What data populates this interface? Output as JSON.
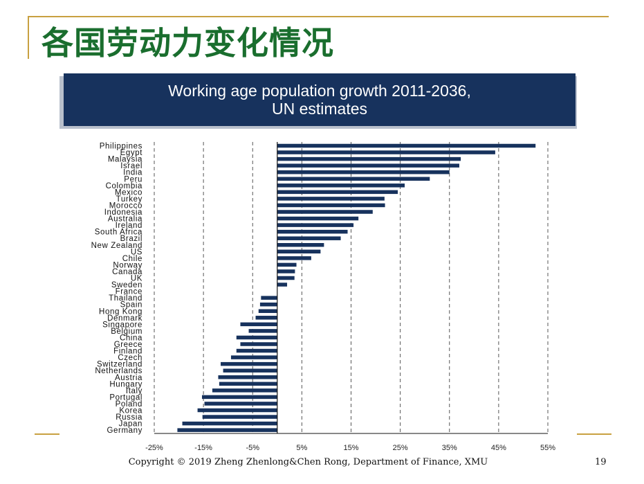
{
  "slide": {
    "title": "各国劳动力变化情况",
    "copyright": "Copyright © 2019 Zheng Zhenlong&Chen Rong, Department of Finance,  XMU",
    "page_number": "19"
  },
  "banner": {
    "line1": "Working age population growth 2011-2036,",
    "line2": "UN estimates"
  },
  "colors": {
    "bar": "#17325d",
    "banner": "#17325d",
    "title": "#1a6e2e",
    "accent_line": "#c8a040"
  },
  "chart_data": {
    "type": "bar",
    "orientation": "horizontal",
    "title": "Working age population growth 2011-2036, UN estimates",
    "xlabel": "",
    "ylabel": "",
    "xlim": [
      -25,
      55
    ],
    "xticks": [
      -25,
      -15,
      -5,
      5,
      15,
      25,
      35,
      45,
      55
    ],
    "xtick_labels": [
      "-25%",
      "-15%",
      "-5%",
      "5%",
      "15%",
      "25%",
      "35%",
      "45%",
      "55%"
    ],
    "grid": "vertical dashed at ticks",
    "categories": [
      "Philippines",
      "Egypt",
      "Malaysia",
      "Israel",
      "India",
      "Peru",
      "Colombia",
      "Mexico",
      "Turkey",
      "Morocco",
      "Indonesia",
      "Australia",
      "Ireland",
      "South Africa",
      "Brazil",
      "New Zealand",
      "US",
      "Chile",
      "Norway",
      "Canada",
      "UK",
      "Sweden",
      "France",
      "Thailand",
      "Spain",
      "Hong Kong",
      "Denmark",
      "Singapore",
      "Belgium",
      "China",
      "Greece",
      "Finland",
      "Czech",
      "Switzerland",
      "Netherlands",
      "Austria",
      "Hungary",
      "Italy",
      "Portugal",
      "Poland",
      "Korea",
      "Russia",
      "Japan",
      "Germany"
    ],
    "values": [
      52.5,
      44.3,
      37.3,
      37.0,
      35.0,
      31.0,
      25.9,
      24.5,
      21.8,
      21.9,
      19.4,
      16.5,
      15.5,
      14.3,
      12.9,
      9.5,
      8.8,
      6.9,
      3.9,
      3.6,
      3.5,
      2.0,
      0,
      -3.3,
      -3.5,
      -3.8,
      -4.4,
      -7.5,
      -5.8,
      -8.3,
      -7.5,
      -8.3,
      -9.4,
      -11.5,
      -11.0,
      -12.0,
      -11.8,
      -13.2,
      -15.3,
      -14.8,
      -16.2,
      -15.2,
      -19.3,
      -20.3
    ]
  }
}
